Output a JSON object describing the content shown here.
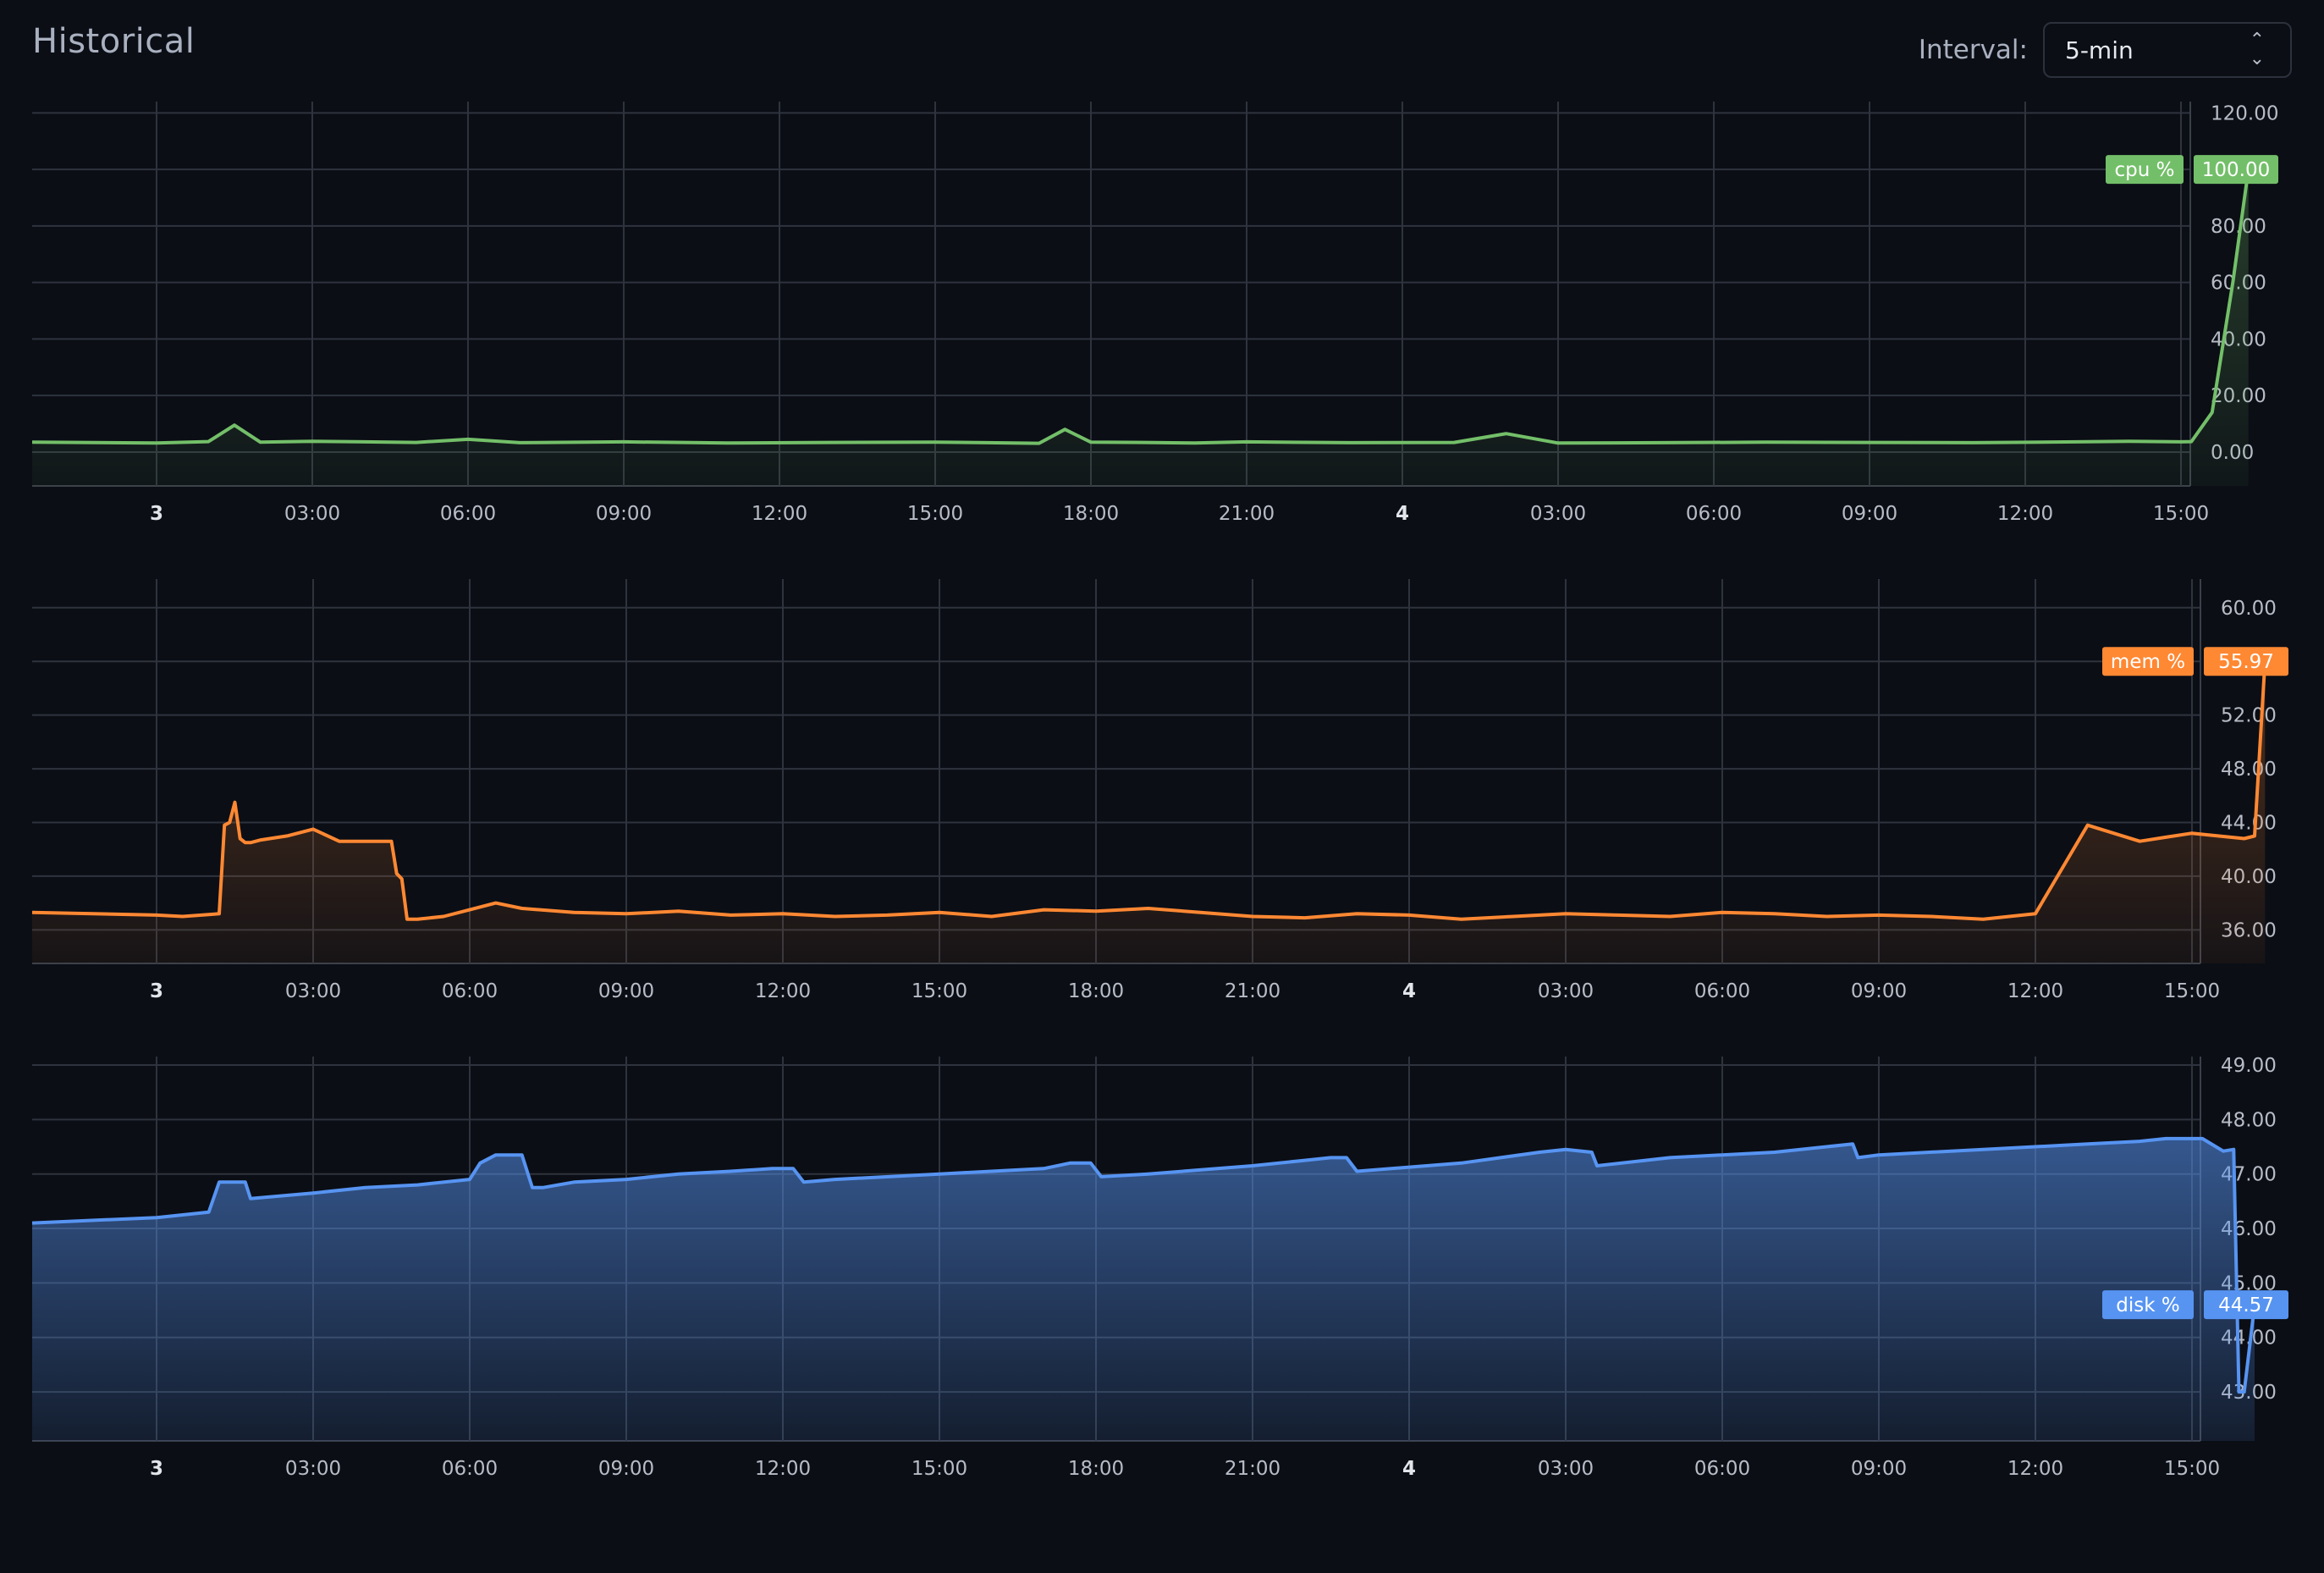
{
  "header": {
    "title": "Historical",
    "interval_label": "Interval:",
    "interval_value": "5-min"
  },
  "x_ticks": [
    {
      "label": "3",
      "bold": true
    },
    {
      "label": "03:00",
      "bold": false
    },
    {
      "label": "06:00",
      "bold": false
    },
    {
      "label": "09:00",
      "bold": false
    },
    {
      "label": "12:00",
      "bold": false
    },
    {
      "label": "15:00",
      "bold": false
    },
    {
      "label": "18:00",
      "bold": false
    },
    {
      "label": "21:00",
      "bold": false
    },
    {
      "label": "4",
      "bold": true
    },
    {
      "label": "03:00",
      "bold": false
    },
    {
      "label": "06:00",
      "bold": false
    },
    {
      "label": "09:00",
      "bold": false
    },
    {
      "label": "12:00",
      "bold": false
    },
    {
      "label": "15:00",
      "bold": false
    }
  ],
  "chart_data": [
    {
      "type": "area",
      "series": [
        {
          "name": "cpu %",
          "color": "#73bf69",
          "x": [
            0,
            1,
            2,
            2.5,
            3,
            4,
            5,
            6,
            7,
            8,
            10,
            12,
            14,
            16,
            17,
            18,
            18.5,
            19,
            20,
            21,
            22,
            24,
            26,
            27,
            28,
            30,
            32,
            34,
            36,
            38,
            39,
            40,
            40.2,
            40.6,
            41,
            41.3
          ],
          "values": [
            3.5,
            3.2,
            3.7,
            9.5,
            3.5,
            3.8,
            3.6,
            3.4,
            4.5,
            3.3,
            3.6,
            3.2,
            3.4,
            3.5,
            3.3,
            3.1,
            8,
            3.5,
            3.4,
            3.2,
            3.6,
            3.3,
            3.4,
            6.5,
            3.2,
            3.3,
            3.5,
            3.4,
            3.3,
            3.6,
            3.8,
            3.6,
            3.7,
            14,
            60,
            100
          ]
        }
      ],
      "ylim": [
        -12,
        121
      ],
      "yticks": [
        0,
        20,
        40,
        60,
        80,
        100,
        120
      ],
      "tick_labels": [
        "0.00",
        "20.00",
        "40.00",
        "60.00",
        "80.00",
        "100.00",
        "120.00"
      ],
      "current": {
        "label": "cpu %",
        "value": "100.00"
      }
    },
    {
      "type": "area",
      "series": [
        {
          "name": "mem %",
          "color": "#ff8833",
          "x": [
            0,
            1,
            1.5,
            2.2,
            2.3,
            2.4,
            2.5,
            2.6,
            2.7,
            2.8,
            3,
            3.5,
            4,
            4.5,
            5,
            5.5,
            5.6,
            5.7,
            5.8,
            6,
            6.5,
            7,
            7.5,
            8,
            9,
            10,
            11,
            12,
            13,
            14,
            15,
            16,
            17,
            18,
            19,
            20,
            21,
            22,
            23,
            24,
            25,
            26,
            27,
            28,
            29,
            30,
            31,
            32,
            33,
            34,
            35,
            36,
            37,
            38,
            39,
            39.5,
            40,
            40.5,
            41,
            41.2,
            41.4
          ],
          "values": [
            37.3,
            37.1,
            37.0,
            37.2,
            43.8,
            44.0,
            45.5,
            42.8,
            42.5,
            42.5,
            42.7,
            43.0,
            43.5,
            42.6,
            42.6,
            42.6,
            40.2,
            39.8,
            36.8,
            36.8,
            37.0,
            37.5,
            38.0,
            37.6,
            37.3,
            37.2,
            37.4,
            37.1,
            37.2,
            37.0,
            37.1,
            37.3,
            37.0,
            37.5,
            37.4,
            37.6,
            37.3,
            37.0,
            36.9,
            37.2,
            37.1,
            36.8,
            37.0,
            37.2,
            37.1,
            37.0,
            37.3,
            37.2,
            37.0,
            37.1,
            37.0,
            36.8,
            37.2,
            43.8,
            42.6,
            42.9,
            43.2,
            43.0,
            42.8,
            43.0,
            56
          ]
        }
      ],
      "ylim": [
        33.5,
        61.5
      ],
      "yticks": [
        36,
        40,
        44,
        48,
        52,
        56,
        60
      ],
      "tick_labels": [
        "36.00",
        "40.00",
        "44.00",
        "48.00",
        "52.00",
        "56.00",
        "60.00"
      ],
      "current": {
        "label": "mem %",
        "value": "55.97"
      }
    },
    {
      "type": "area",
      "series": [
        {
          "name": "disk %",
          "color": "#5794f2",
          "x": [
            0,
            1,
            2,
            2.2,
            2.7,
            2.8,
            4,
            5,
            6,
            7,
            7.2,
            7.5,
            8,
            8.2,
            8.4,
            9,
            10,
            11,
            12,
            12.8,
            13.2,
            13.4,
            14,
            16,
            18,
            18.5,
            18.9,
            19.1,
            20,
            22,
            23,
            23.5,
            23.8,
            24,
            26,
            27.5,
            28,
            28.5,
            28.6,
            30,
            32,
            33,
            33.5,
            33.6,
            34,
            36,
            38,
            39,
            39.5,
            40.2,
            40.6,
            40.8,
            40.9,
            41,
            41.2
          ],
          "values": [
            46.1,
            46.2,
            46.3,
            46.85,
            46.85,
            46.55,
            46.65,
            46.75,
            46.8,
            46.9,
            47.2,
            47.35,
            47.35,
            46.75,
            46.75,
            46.85,
            46.9,
            47.0,
            47.05,
            47.1,
            47.1,
            46.85,
            46.9,
            47.0,
            47.1,
            47.2,
            47.2,
            46.95,
            47.0,
            47.15,
            47.25,
            47.3,
            47.3,
            47.05,
            47.2,
            47.4,
            47.45,
            47.4,
            47.15,
            47.3,
            47.4,
            47.5,
            47.55,
            47.3,
            47.35,
            47.45,
            47.55,
            47.6,
            47.65,
            47.65,
            47.42,
            47.45,
            43.0,
            43.0,
            44.6
          ]
        }
      ],
      "ylim": [
        42.1,
        49
      ],
      "yticks": [
        43,
        44,
        45,
        46,
        47,
        48,
        49
      ],
      "tick_labels": [
        "43.00",
        "44.00",
        "45.00",
        "46.00",
        "47.00",
        "48.00",
        "49.00"
      ],
      "current": {
        "label": "disk %",
        "value": "44.57"
      }
    }
  ]
}
